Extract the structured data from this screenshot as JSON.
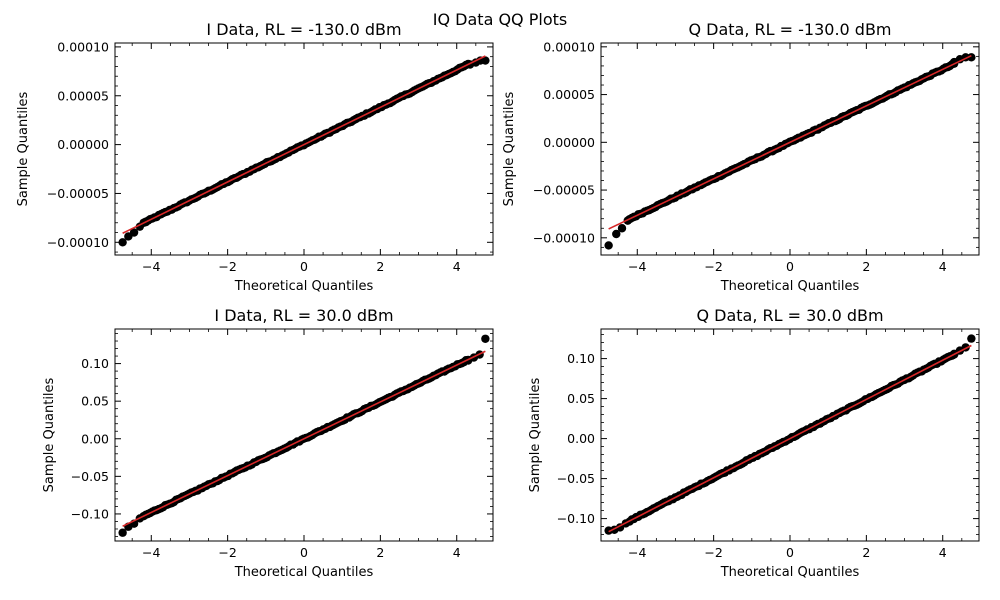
{
  "figure": {
    "suptitle": "IQ Data QQ Plots",
    "colors": {
      "points": "#000000",
      "line": "#d62728",
      "axes": "#000000",
      "background": "#ffffff"
    }
  },
  "chart_data": [
    {
      "type": "scatter",
      "title": "I Data, RL = -130.0 dBm",
      "xlabel": "Theoretical Quantiles",
      "ylabel": "Sample Quantiles",
      "xlim": [
        -4.95,
        4.95
      ],
      "ylim": [
        -0.000113,
        0.000104
      ],
      "xticks": [
        -4,
        -2,
        0,
        2,
        4
      ],
      "xtick_labels": [
        "−4",
        "−2",
        "0",
        "2",
        "4"
      ],
      "yticks": [
        -0.0001,
        -5e-05,
        0,
        5e-05,
        0.0001
      ],
      "ytick_labels": [
        "−0.00010",
        "−0.00005",
        "0.00000",
        "0.00005",
        "0.00010"
      ],
      "grid": false,
      "reference_line": {
        "slope": 1.91e-05,
        "intercept": 0,
        "x_range": [
          -4.75,
          4.75
        ]
      },
      "points": [
        [
          -4.75,
          -0.0001
        ],
        [
          -4.6,
          -9.4e-05
        ],
        [
          -4.45,
          -9e-05
        ],
        [
          -4.3,
          -8.4e-05
        ],
        [
          -4.15,
          -7.9e-05
        ],
        [
          4.35,
          8.2e-05
        ],
        [
          4.5,
          8.4e-05
        ],
        [
          4.62,
          8.6e-05
        ],
        [
          4.75,
          8.6e-05
        ]
      ]
    },
    {
      "type": "scatter",
      "title": "Q Data, RL = -130.0 dBm",
      "xlabel": "Theoretical Quantiles",
      "ylabel": "Sample Quantiles",
      "xlim": [
        -4.95,
        4.95
      ],
      "ylim": [
        -0.000118,
        0.000104
      ],
      "xticks": [
        -4,
        -2,
        0,
        2,
        4
      ],
      "xtick_labels": [
        "−4",
        "−2",
        "0",
        "2",
        "4"
      ],
      "yticks": [
        -0.0001,
        -5e-05,
        0,
        5e-05,
        0.0001
      ],
      "ytick_labels": [
        "−0.00010",
        "−0.00005",
        "0.00000",
        "0.00005",
        "0.00010"
      ],
      "grid": false,
      "reference_line": {
        "slope": 1.91e-05,
        "intercept": 0,
        "x_range": [
          -4.75,
          4.75
        ]
      },
      "points": [
        [
          -4.75,
          -0.000108
        ],
        [
          -4.55,
          -9.6e-05
        ],
        [
          -4.4,
          -9e-05
        ],
        [
          -4.25,
          -8.2e-05
        ],
        [
          4.3,
          8.4e-05
        ],
        [
          4.45,
          8.7e-05
        ],
        [
          4.6,
          8.9e-05
        ],
        [
          4.75,
          8.9e-05
        ]
      ]
    },
    {
      "type": "scatter",
      "title": "I Data, RL = 30.0 dBm",
      "xlabel": "Theoretical Quantiles",
      "ylabel": "Sample Quantiles",
      "xlim": [
        -4.95,
        4.95
      ],
      "ylim": [
        -0.136,
        0.146
      ],
      "xticks": [
        -4,
        -2,
        0,
        2,
        4
      ],
      "xtick_labels": [
        "−4",
        "−2",
        "0",
        "2",
        "4"
      ],
      "yticks": [
        -0.1,
        -0.05,
        0,
        0.05,
        0.1
      ],
      "ytick_labels": [
        "−0.10",
        "−0.05",
        "0.00",
        "0.05",
        "0.10"
      ],
      "grid": false,
      "reference_line": {
        "slope": 0.0245,
        "intercept": 0,
        "x_range": [
          -4.75,
          4.75
        ]
      },
      "points": [
        [
          -4.75,
          -0.125
        ],
        [
          -4.6,
          -0.117
        ],
        [
          -4.45,
          -0.113
        ],
        [
          -4.3,
          -0.106
        ],
        [
          4.3,
          0.104
        ],
        [
          4.45,
          0.108
        ],
        [
          4.6,
          0.112
        ],
        [
          4.75,
          0.133
        ]
      ]
    },
    {
      "type": "scatter",
      "title": "Q Data, RL = 30.0 dBm",
      "xlabel": "Theoretical Quantiles",
      "ylabel": "Sample Quantiles",
      "xlim": [
        -4.95,
        4.95
      ],
      "ylim": [
        -0.128,
        0.137
      ],
      "xticks": [
        -4,
        -2,
        0,
        2,
        4
      ],
      "xtick_labels": [
        "−4",
        "−2",
        "0",
        "2",
        "4"
      ],
      "yticks": [
        -0.1,
        -0.05,
        0,
        0.05,
        0.1
      ],
      "ytick_labels": [
        "−0.10",
        "−0.05",
        "0.00",
        "0.05",
        "0.10"
      ],
      "grid": false,
      "reference_line": {
        "slope": 0.0245,
        "intercept": 0,
        "x_range": [
          -4.75,
          4.75
        ]
      },
      "points": [
        [
          -4.75,
          -0.115
        ],
        [
          -4.6,
          -0.114
        ],
        [
          -4.45,
          -0.111
        ],
        [
          -4.3,
          -0.106
        ],
        [
          4.3,
          0.106
        ],
        [
          4.45,
          0.11
        ],
        [
          4.6,
          0.114
        ],
        [
          4.75,
          0.125
        ]
      ]
    }
  ]
}
